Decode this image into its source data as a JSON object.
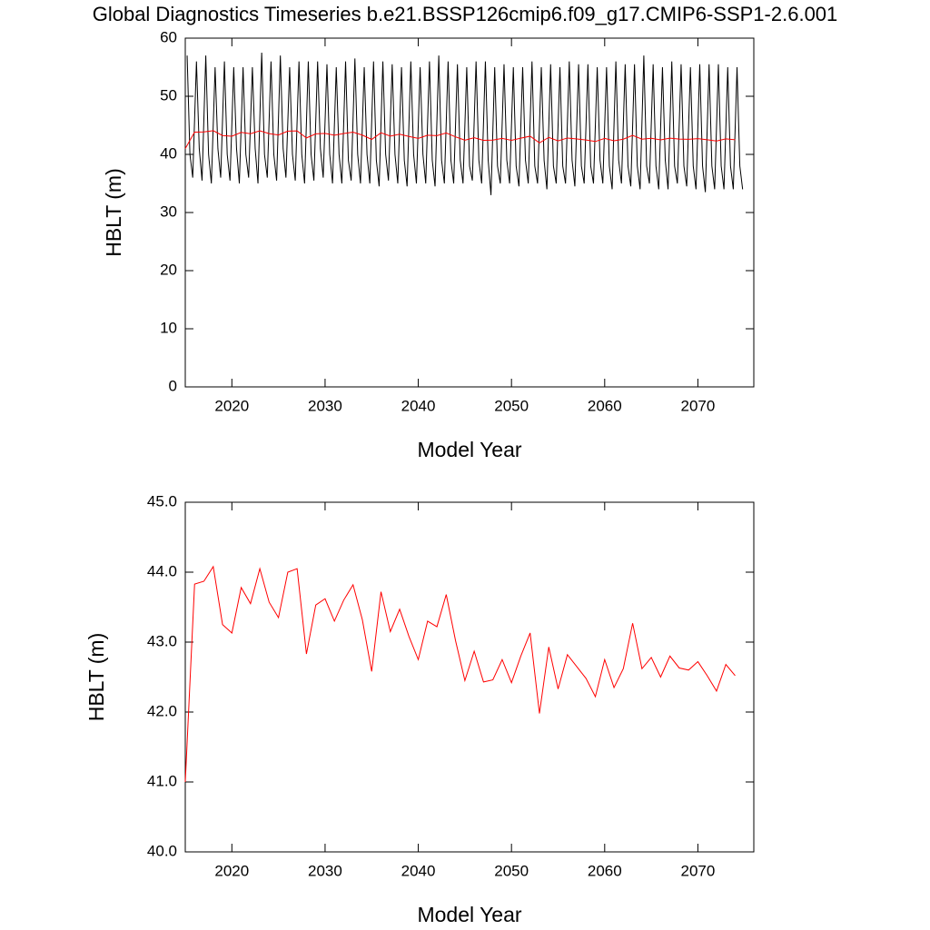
{
  "chart_data": [
    {
      "type": "line",
      "title": "Global Diagnostics Timeseries b.e21.BSSP126cmip6.f09_g17.CMIP6-SSP1-2.6.001",
      "y_label": "HBLT (m)",
      "x_label": "Model Year",
      "xlim": [
        2015,
        2076
      ],
      "xticks": [
        2020,
        2030,
        2040,
        2050,
        2060,
        2070
      ],
      "ylim": [
        0,
        60
      ],
      "yticks": [
        0,
        10,
        20,
        30,
        40,
        50,
        60
      ],
      "series": [
        {
          "color": "#000000",
          "x": [
            2015.2,
            2015.5,
            2015.8,
            2016.2,
            2016.5,
            2016.8,
            2017.2,
            2017.5,
            2017.8,
            2018.2,
            2018.5,
            2018.8,
            2019.2,
            2019.5,
            2019.8,
            2020.2,
            2020.5,
            2020.8,
            2021.2,
            2021.5,
            2021.8,
            2022.2,
            2022.5,
            2022.8,
            2023.2,
            2023.5,
            2023.8,
            2024.2,
            2024.5,
            2024.8,
            2025.2,
            2025.5,
            2025.8,
            2026.2,
            2026.5,
            2026.8,
            2027.2,
            2027.5,
            2027.8,
            2028.2,
            2028.5,
            2028.8,
            2029.2,
            2029.5,
            2029.8,
            2030.2,
            2030.5,
            2030.8,
            2031.2,
            2031.5,
            2031.8,
            2032.2,
            2032.5,
            2032.8,
            2033.2,
            2033.5,
            2033.8,
            2034.2,
            2034.5,
            2034.8,
            2035.2,
            2035.5,
            2035.8,
            2036.2,
            2036.5,
            2036.8,
            2037.2,
            2037.5,
            2037.8,
            2038.2,
            2038.5,
            2038.8,
            2039.2,
            2039.5,
            2039.8,
            2040.2,
            2040.5,
            2040.8,
            2041.2,
            2041.5,
            2041.8,
            2042.2,
            2042.5,
            2042.8,
            2043.2,
            2043.5,
            2043.8,
            2044.2,
            2044.5,
            2044.8,
            2045.2,
            2045.5,
            2045.8,
            2046.2,
            2046.5,
            2046.8,
            2047.2,
            2047.5,
            2047.8,
            2048.2,
            2048.5,
            2048.8,
            2049.2,
            2049.5,
            2049.8,
            2050.2,
            2050.5,
            2050.8,
            2051.2,
            2051.5,
            2051.8,
            2052.2,
            2052.5,
            2052.8,
            2053.2,
            2053.5,
            2053.8,
            2054.2,
            2054.5,
            2054.8,
            2055.2,
            2055.5,
            2055.8,
            2056.2,
            2056.5,
            2056.8,
            2057.2,
            2057.5,
            2057.8,
            2058.2,
            2058.5,
            2058.8,
            2059.2,
            2059.5,
            2059.8,
            2060.2,
            2060.5,
            2060.8,
            2061.2,
            2061.5,
            2061.8,
            2062.2,
            2062.5,
            2062.8,
            2063.2,
            2063.5,
            2063.8,
            2064.2,
            2064.5,
            2064.8,
            2065.2,
            2065.5,
            2065.8,
            2066.2,
            2066.5,
            2066.8,
            2067.2,
            2067.5,
            2067.8,
            2068.2,
            2068.5,
            2068.8,
            2069.2,
            2069.5,
            2069.8,
            2070.2,
            2070.5,
            2070.8,
            2071.2,
            2071.5,
            2071.8,
            2072.2,
            2072.5,
            2072.8,
            2073.2,
            2073.5,
            2073.8,
            2074.2,
            2074.5,
            2074.8
          ],
          "values": [
            57,
            40,
            36,
            56,
            41,
            35.5,
            57,
            40,
            35,
            55,
            41,
            36,
            56,
            40,
            35.5,
            55,
            41,
            35,
            55,
            40,
            36,
            55,
            41,
            35,
            57.5,
            40,
            36,
            56,
            40,
            35.5,
            57,
            41,
            36,
            55,
            40,
            35.5,
            56,
            40,
            35,
            56,
            40,
            35.5,
            56,
            41,
            36,
            55.5,
            40,
            35,
            55,
            40,
            35,
            56,
            39,
            35.5,
            56.5,
            40,
            35,
            55,
            40,
            35,
            56,
            39,
            34.5,
            56,
            40,
            35.5,
            55.5,
            40,
            35,
            55,
            39,
            34.5,
            56,
            40,
            35,
            55,
            40,
            35,
            56,
            39,
            34.5,
            57,
            39,
            35,
            56,
            39,
            35,
            55.5,
            39,
            35,
            55,
            38,
            35.5,
            56,
            39,
            35,
            56,
            39,
            33,
            55,
            38,
            35,
            55.5,
            39,
            35,
            55,
            38,
            34.5,
            55,
            39,
            35,
            56,
            38,
            35,
            55,
            39,
            34,
            55.5,
            38,
            35,
            55,
            38,
            35,
            56,
            39,
            34.5,
            55.5,
            38,
            35,
            55.5,
            38,
            35,
            55,
            39,
            35,
            55,
            38,
            34,
            56,
            39,
            35,
            55.5,
            38,
            34.5,
            55.5,
            38,
            34,
            57,
            38,
            35,
            55.5,
            38,
            34,
            55,
            39,
            34,
            56,
            38,
            35,
            55.5,
            38,
            34.5,
            55,
            38,
            34,
            55.5,
            38,
            33.5,
            55.5,
            38,
            34,
            55.5,
            38,
            34,
            55,
            38,
            34,
            55,
            38,
            34
          ]
        },
        {
          "color": "#ff0000",
          "x": [
            2015,
            2016,
            2017,
            2018,
            2019,
            2020,
            2021,
            2022,
            2023,
            2024,
            2025,
            2026,
            2027,
            2028,
            2029,
            2030,
            2031,
            2032,
            2033,
            2034,
            2035,
            2036,
            2037,
            2038,
            2039,
            2040,
            2041,
            2042,
            2043,
            2044,
            2045,
            2046,
            2047,
            2048,
            2049,
            2050,
            2051,
            2052,
            2053,
            2054,
            2055,
            2056,
            2057,
            2058,
            2059,
            2060,
            2061,
            2062,
            2063,
            2064,
            2065,
            2066,
            2067,
            2068,
            2069,
            2070,
            2071,
            2072,
            2073,
            2074
          ],
          "values": [
            41.0,
            43.83,
            43.87,
            44.08,
            43.25,
            43.13,
            43.78,
            43.55,
            44.05,
            43.57,
            43.35,
            44.0,
            44.05,
            42.83,
            43.53,
            43.62,
            43.3,
            43.6,
            43.82,
            43.32,
            42.58,
            43.72,
            43.15,
            43.47,
            43.08,
            42.75,
            43.3,
            43.22,
            43.68,
            43.02,
            42.45,
            42.87,
            42.43,
            42.46,
            42.75,
            42.42,
            42.8,
            43.13,
            41.98,
            42.93,
            42.33,
            42.82,
            42.65,
            42.48,
            42.22,
            42.75,
            42.35,
            42.62,
            43.27,
            42.62,
            42.78,
            42.5,
            42.8,
            42.63,
            42.6,
            42.72,
            42.52,
            42.3,
            42.68,
            42.52
          ]
        }
      ]
    },
    {
      "type": "line",
      "y_label": "HBLT (m)",
      "x_label": "Model Year",
      "xlim": [
        2015,
        2076
      ],
      "xticks": [
        2020,
        2030,
        2040,
        2050,
        2060,
        2070
      ],
      "ylim": [
        40,
        45
      ],
      "yticks": [
        {
          "value": 40,
          "label": "40.0"
        },
        {
          "value": 41,
          "label": "41.0"
        },
        {
          "value": 42,
          "label": "42.0"
        },
        {
          "value": 43,
          "label": "43.0"
        },
        {
          "value": 44,
          "label": "44.0"
        },
        {
          "value": 45,
          "label": "45.0"
        }
      ],
      "series": [
        {
          "color": "#ff0000",
          "x": [
            2015,
            2016,
            2017,
            2018,
            2019,
            2020,
            2021,
            2022,
            2023,
            2024,
            2025,
            2026,
            2027,
            2028,
            2029,
            2030,
            2031,
            2032,
            2033,
            2034,
            2035,
            2036,
            2037,
            2038,
            2039,
            2040,
            2041,
            2042,
            2043,
            2044,
            2045,
            2046,
            2047,
            2048,
            2049,
            2050,
            2051,
            2052,
            2053,
            2054,
            2055,
            2056,
            2057,
            2058,
            2059,
            2060,
            2061,
            2062,
            2063,
            2064,
            2065,
            2066,
            2067,
            2068,
            2069,
            2070,
            2071,
            2072,
            2073,
            2074
          ],
          "values": [
            41.0,
            43.83,
            43.87,
            44.08,
            43.25,
            43.13,
            43.78,
            43.55,
            44.05,
            43.57,
            43.35,
            44.0,
            44.05,
            42.83,
            43.53,
            43.62,
            43.3,
            43.6,
            43.82,
            43.32,
            42.58,
            43.72,
            43.15,
            43.47,
            43.08,
            42.75,
            43.3,
            43.22,
            43.68,
            43.02,
            42.45,
            42.87,
            42.43,
            42.46,
            42.75,
            42.42,
            42.8,
            43.13,
            41.98,
            42.93,
            42.33,
            42.82,
            42.65,
            42.48,
            42.22,
            42.75,
            42.35,
            42.62,
            43.27,
            42.62,
            42.78,
            42.5,
            42.8,
            42.63,
            42.6,
            42.72,
            42.52,
            42.3,
            42.68,
            42.52
          ]
        }
      ]
    }
  ]
}
